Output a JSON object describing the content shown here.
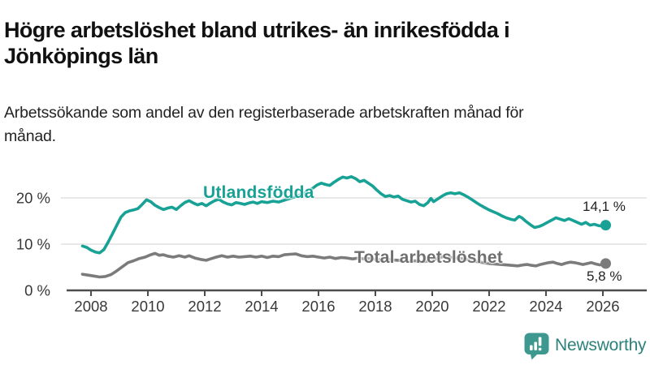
{
  "chart_data": {
    "type": "line",
    "title": "Högre arbetslöshet bland utrikes- än inrikesfödda i Jönköpings län",
    "subtitle": "Arbetssökande som andel av den registerbaserade arbetskraften månad för månad.",
    "unit": "%",
    "xlim": [
      2007.5,
      2026.6
    ],
    "ylim": [
      0,
      26
    ],
    "grid": "horizontal",
    "legend_position": "inline-labels",
    "x_ticks": [
      2008,
      2010,
      2012,
      2014,
      2016,
      2018,
      2020,
      2022,
      2024,
      2026
    ],
    "y_ticks": [
      {
        "value": 0,
        "label": "0 %"
      },
      {
        "value": 10,
        "label": "10 %"
      },
      {
        "value": 20,
        "label": "20 %"
      }
    ],
    "series": [
      {
        "name": "Utlandsfödda",
        "color": "#18a195",
        "end_label": "14,1 %",
        "end_value": 14.1,
        "points": [
          [
            2007.7,
            9.6
          ],
          [
            2007.85,
            9.3
          ],
          [
            2008.0,
            8.7
          ],
          [
            2008.15,
            8.3
          ],
          [
            2008.3,
            8.1
          ],
          [
            2008.45,
            8.8
          ],
          [
            2008.6,
            10.4
          ],
          [
            2008.75,
            12.2
          ],
          [
            2008.9,
            14.0
          ],
          [
            2009.05,
            15.8
          ],
          [
            2009.2,
            16.8
          ],
          [
            2009.35,
            17.2
          ],
          [
            2009.5,
            17.4
          ],
          [
            2009.65,
            17.7
          ],
          [
            2009.8,
            18.6
          ],
          [
            2009.95,
            19.6
          ],
          [
            2010.1,
            19.2
          ],
          [
            2010.25,
            18.4
          ],
          [
            2010.4,
            17.9
          ],
          [
            2010.55,
            17.5
          ],
          [
            2010.7,
            17.8
          ],
          [
            2010.85,
            18.0
          ],
          [
            2011.0,
            17.5
          ],
          [
            2011.15,
            18.3
          ],
          [
            2011.3,
            19.0
          ],
          [
            2011.45,
            19.4
          ],
          [
            2011.6,
            18.9
          ],
          [
            2011.75,
            18.5
          ],
          [
            2011.9,
            18.8
          ],
          [
            2012.05,
            18.3
          ],
          [
            2012.2,
            18.9
          ],
          [
            2012.35,
            19.4
          ],
          [
            2012.5,
            19.7
          ],
          [
            2012.65,
            19.1
          ],
          [
            2012.8,
            18.7
          ],
          [
            2012.95,
            18.5
          ],
          [
            2013.1,
            19.0
          ],
          [
            2013.25,
            18.8
          ],
          [
            2013.4,
            18.6
          ],
          [
            2013.55,
            18.9
          ],
          [
            2013.7,
            19.1
          ],
          [
            2013.85,
            18.8
          ],
          [
            2014.0,
            19.2
          ],
          [
            2014.2,
            19.0
          ],
          [
            2014.4,
            19.3
          ],
          [
            2014.6,
            19.1
          ],
          [
            2014.8,
            19.5
          ],
          [
            2015.0,
            19.9
          ],
          [
            2015.2,
            20.3
          ],
          [
            2015.4,
            20.8
          ],
          [
            2015.6,
            21.3
          ],
          [
            2015.8,
            22.1
          ],
          [
            2015.95,
            22.8
          ],
          [
            2016.1,
            23.2
          ],
          [
            2016.25,
            22.9
          ],
          [
            2016.4,
            22.7
          ],
          [
            2016.55,
            23.4
          ],
          [
            2016.7,
            24.0
          ],
          [
            2016.85,
            24.5
          ],
          [
            2017.0,
            24.3
          ],
          [
            2017.15,
            24.6
          ],
          [
            2017.3,
            24.2
          ],
          [
            2017.45,
            23.5
          ],
          [
            2017.6,
            23.8
          ],
          [
            2017.75,
            23.2
          ],
          [
            2017.9,
            22.6
          ],
          [
            2018.05,
            21.7
          ],
          [
            2018.2,
            20.9
          ],
          [
            2018.35,
            20.3
          ],
          [
            2018.5,
            20.5
          ],
          [
            2018.65,
            20.2
          ],
          [
            2018.8,
            20.4
          ],
          [
            2018.95,
            19.7
          ],
          [
            2019.1,
            19.4
          ],
          [
            2019.25,
            19.1
          ],
          [
            2019.4,
            19.3
          ],
          [
            2019.55,
            18.6
          ],
          [
            2019.7,
            18.3
          ],
          [
            2019.85,
            19.0
          ],
          [
            2019.95,
            19.9
          ],
          [
            2020.05,
            19.2
          ],
          [
            2020.2,
            19.8
          ],
          [
            2020.35,
            20.4
          ],
          [
            2020.5,
            20.9
          ],
          [
            2020.65,
            21.1
          ],
          [
            2020.8,
            20.9
          ],
          [
            2020.95,
            21.1
          ],
          [
            2021.1,
            20.7
          ],
          [
            2021.25,
            20.2
          ],
          [
            2021.4,
            19.6
          ],
          [
            2021.55,
            19.0
          ],
          [
            2021.7,
            18.4
          ],
          [
            2021.85,
            17.9
          ],
          [
            2022.0,
            17.4
          ],
          [
            2022.15,
            17.0
          ],
          [
            2022.3,
            16.6
          ],
          [
            2022.45,
            16.1
          ],
          [
            2022.6,
            15.7
          ],
          [
            2022.75,
            15.4
          ],
          [
            2022.9,
            15.2
          ],
          [
            2023.05,
            16.0
          ],
          [
            2023.15,
            15.7
          ],
          [
            2023.3,
            14.9
          ],
          [
            2023.45,
            14.2
          ],
          [
            2023.6,
            13.6
          ],
          [
            2023.75,
            13.8
          ],
          [
            2023.9,
            14.2
          ],
          [
            2024.05,
            14.7
          ],
          [
            2024.2,
            15.2
          ],
          [
            2024.35,
            15.7
          ],
          [
            2024.5,
            15.4
          ],
          [
            2024.65,
            15.1
          ],
          [
            2024.8,
            15.5
          ],
          [
            2024.95,
            15.1
          ],
          [
            2025.1,
            14.7
          ],
          [
            2025.25,
            14.3
          ],
          [
            2025.4,
            14.7
          ],
          [
            2025.55,
            14.1
          ],
          [
            2025.7,
            14.3
          ],
          [
            2025.85,
            14.0
          ],
          [
            2026.0,
            13.9
          ],
          [
            2026.1,
            14.1
          ]
        ]
      },
      {
        "name": "Total arbetslöshet",
        "color": "#7b7b7b",
        "end_label": "5,8 %",
        "end_value": 5.8,
        "points": [
          [
            2007.7,
            3.5
          ],
          [
            2007.9,
            3.3
          ],
          [
            2008.1,
            3.1
          ],
          [
            2008.3,
            2.9
          ],
          [
            2008.5,
            3.0
          ],
          [
            2008.7,
            3.4
          ],
          [
            2008.9,
            4.2
          ],
          [
            2009.1,
            5.1
          ],
          [
            2009.3,
            6.0
          ],
          [
            2009.5,
            6.4
          ],
          [
            2009.7,
            6.9
          ],
          [
            2009.9,
            7.2
          ],
          [
            2010.1,
            7.7
          ],
          [
            2010.25,
            8.0
          ],
          [
            2010.4,
            7.6
          ],
          [
            2010.55,
            7.7
          ],
          [
            2010.7,
            7.4
          ],
          [
            2010.9,
            7.2
          ],
          [
            2011.1,
            7.5
          ],
          [
            2011.3,
            7.2
          ],
          [
            2011.45,
            7.5
          ],
          [
            2011.65,
            7.0
          ],
          [
            2011.85,
            6.7
          ],
          [
            2012.05,
            6.5
          ],
          [
            2012.2,
            6.8
          ],
          [
            2012.4,
            7.2
          ],
          [
            2012.6,
            7.5
          ],
          [
            2012.8,
            7.2
          ],
          [
            2013.0,
            7.4
          ],
          [
            2013.2,
            7.2
          ],
          [
            2013.4,
            7.3
          ],
          [
            2013.6,
            7.4
          ],
          [
            2013.8,
            7.2
          ],
          [
            2014.0,
            7.4
          ],
          [
            2014.2,
            7.1
          ],
          [
            2014.4,
            7.4
          ],
          [
            2014.6,
            7.3
          ],
          [
            2014.8,
            7.7
          ],
          [
            2015.0,
            7.8
          ],
          [
            2015.2,
            7.9
          ],
          [
            2015.4,
            7.5
          ],
          [
            2015.6,
            7.3
          ],
          [
            2015.8,
            7.4
          ],
          [
            2016.0,
            7.2
          ],
          [
            2016.2,
            7.0
          ],
          [
            2016.4,
            7.2
          ],
          [
            2016.6,
            6.9
          ],
          [
            2016.8,
            7.1
          ],
          [
            2017.0,
            7.0
          ],
          [
            2017.2,
            6.8
          ],
          [
            2017.4,
            7.0
          ],
          [
            2017.6,
            6.8
          ],
          [
            2017.8,
            6.9
          ],
          [
            2018.0,
            6.7
          ],
          [
            2018.2,
            6.6
          ],
          [
            2018.4,
            6.8
          ],
          [
            2018.6,
            6.6
          ],
          [
            2018.8,
            6.5
          ],
          [
            2019.0,
            6.4
          ],
          [
            2019.2,
            6.3
          ],
          [
            2019.4,
            6.4
          ],
          [
            2019.6,
            6.2
          ],
          [
            2019.8,
            6.3
          ],
          [
            2020.0,
            6.5
          ],
          [
            2020.2,
            7.0
          ],
          [
            2020.4,
            7.3
          ],
          [
            2020.6,
            7.2
          ],
          [
            2020.8,
            7.0
          ],
          [
            2021.0,
            6.9
          ],
          [
            2021.2,
            6.7
          ],
          [
            2021.4,
            6.4
          ],
          [
            2021.6,
            6.2
          ],
          [
            2021.8,
            6.0
          ],
          [
            2022.0,
            5.8
          ],
          [
            2022.2,
            5.7
          ],
          [
            2022.4,
            5.6
          ],
          [
            2022.6,
            5.5
          ],
          [
            2022.8,
            5.4
          ],
          [
            2023.0,
            5.3
          ],
          [
            2023.2,
            5.5
          ],
          [
            2023.35,
            5.6
          ],
          [
            2023.5,
            5.4
          ],
          [
            2023.65,
            5.3
          ],
          [
            2023.8,
            5.6
          ],
          [
            2023.95,
            5.8
          ],
          [
            2024.1,
            6.0
          ],
          [
            2024.25,
            6.1
          ],
          [
            2024.4,
            5.8
          ],
          [
            2024.55,
            5.6
          ],
          [
            2024.7,
            5.9
          ],
          [
            2024.85,
            6.1
          ],
          [
            2025.0,
            6.0
          ],
          [
            2025.15,
            5.8
          ],
          [
            2025.3,
            5.6
          ],
          [
            2025.45,
            5.8
          ],
          [
            2025.6,
            6.0
          ],
          [
            2025.75,
            5.7
          ],
          [
            2025.9,
            5.5
          ],
          [
            2026.1,
            5.8
          ]
        ]
      }
    ]
  },
  "colors": {
    "accent_teal": "#18a195",
    "series_gray": "#7b7b7b",
    "grid": "#e1e1e1",
    "axis": "#4d4d4d",
    "tick_text": "#383838",
    "brand_teal": "#3d998f"
  },
  "footer": {
    "brand": "Newsworthy"
  }
}
